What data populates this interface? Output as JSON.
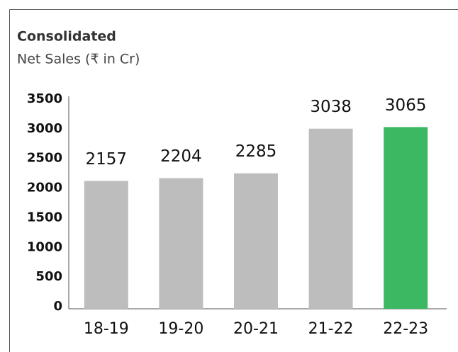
{
  "chart_data": {
    "type": "bar",
    "title": "Consolidated",
    "subtitle": "Net Sales (₹ in Cr)",
    "categories": [
      "18-19",
      "19-20",
      "20-21",
      "21-22",
      "22-23"
    ],
    "values": [
      2157,
      2204,
      2285,
      3038,
      3065
    ],
    "colors": [
      "#bdbdbd",
      "#bdbdbd",
      "#bdbdbd",
      "#bdbdbd",
      "#3cb862"
    ],
    "ylim": [
      0,
      3500
    ],
    "yticks": [
      0,
      500,
      1000,
      1500,
      2000,
      2500,
      3000,
      3500
    ],
    "grid": false
  }
}
